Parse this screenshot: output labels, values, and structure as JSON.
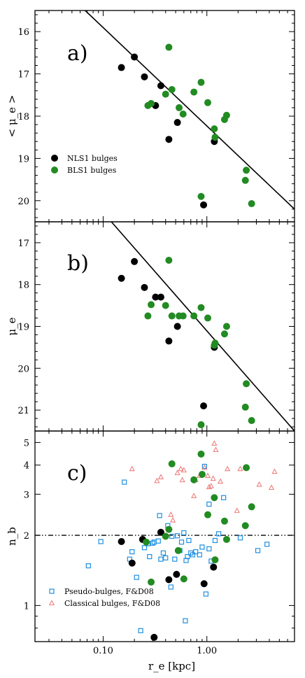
{
  "colors": {
    "nls1": "#000000",
    "bls1": "#228b22",
    "pseudo": "#1f8fe0",
    "classical": "#f07f7f",
    "frame": "#000000"
  },
  "xaxis": {
    "label": "r_e [kpc]",
    "tick_labels": [
      "0.10",
      "1.00"
    ],
    "scale": "log",
    "xlim": [
      0.022,
      7.0
    ]
  },
  "chart_data": [
    {
      "type": "scatter",
      "panel_label": "a)",
      "ylabel": "< μ_e >",
      "yscale": "linear-inverted",
      "ylim": [
        20.5,
        15.5
      ],
      "yticks": [
        16,
        17,
        18,
        19,
        20
      ],
      "legend": "center-left",
      "fit_line": {
        "x": [
          0.067,
          7.0
        ],
        "y": [
          15.5,
          20.2
        ]
      },
      "series": [
        {
          "name": "NLS1 bulges",
          "marker": "filled-circle",
          "color": "#000000",
          "points": [
            [
              0.15,
              16.85
            ],
            [
              0.2,
              16.6
            ],
            [
              0.25,
              17.07
            ],
            [
              0.32,
              17.75
            ],
            [
              0.36,
              17.28
            ],
            [
              0.43,
              18.55
            ],
            [
              0.52,
              18.15
            ],
            [
              1.18,
              18.6
            ],
            [
              0.93,
              20.1
            ]
          ]
        },
        {
          "name": "BLS1 bulges",
          "marker": "filled-circle",
          "color": "#228b22",
          "points": [
            [
              0.43,
              16.37
            ],
            [
              0.27,
              17.75
            ],
            [
              0.29,
              17.7
            ],
            [
              0.4,
              17.48
            ],
            [
              0.46,
              17.37
            ],
            [
              0.54,
              17.8
            ],
            [
              0.59,
              17.95
            ],
            [
              0.75,
              17.43
            ],
            [
              0.88,
              17.2
            ],
            [
              1.02,
              17.68
            ],
            [
              1.18,
              18.3
            ],
            [
              1.2,
              18.5
            ],
            [
              1.48,
              18.08
            ],
            [
              1.55,
              17.98
            ],
            [
              0.88,
              19.9
            ],
            [
              2.4,
              19.28
            ],
            [
              2.35,
              19.52
            ],
            [
              2.7,
              20.07
            ]
          ]
        }
      ]
    },
    {
      "type": "scatter",
      "panel_label": "b)",
      "ylabel": "μ_e",
      "yscale": "linear-inverted",
      "ylim": [
        21.5,
        16.5
      ],
      "yticks": [
        17,
        18,
        19,
        20,
        21
      ],
      "fit_line": {
        "x": [
          0.12,
          7.0
        ],
        "y": [
          16.5,
          21.5
        ]
      },
      "series": [
        {
          "name": "NLS1 bulges",
          "marker": "filled-circle",
          "color": "#000000",
          "points": [
            [
              0.15,
              17.85
            ],
            [
              0.2,
              17.45
            ],
            [
              0.25,
              18.07
            ],
            [
              0.32,
              18.3
            ],
            [
              0.36,
              18.3
            ],
            [
              0.43,
              19.35
            ],
            [
              0.52,
              19.0
            ],
            [
              1.18,
              19.5
            ],
            [
              0.93,
              20.9
            ]
          ]
        },
        {
          "name": "BLS1 bulges",
          "marker": "filled-circle",
          "color": "#228b22",
          "points": [
            [
              0.43,
              17.42
            ],
            [
              0.27,
              18.75
            ],
            [
              0.29,
              18.48
            ],
            [
              0.4,
              18.5
            ],
            [
              0.46,
              18.75
            ],
            [
              0.54,
              18.75
            ],
            [
              0.59,
              18.75
            ],
            [
              0.75,
              18.75
            ],
            [
              0.88,
              18.55
            ],
            [
              1.02,
              18.8
            ],
            [
              1.18,
              19.45
            ],
            [
              1.2,
              19.4
            ],
            [
              1.48,
              19.18
            ],
            [
              1.55,
              19.0
            ],
            [
              0.88,
              21.35
            ],
            [
              2.4,
              20.37
            ],
            [
              2.35,
              20.93
            ],
            [
              2.7,
              21.25
            ]
          ]
        }
      ]
    },
    {
      "type": "scatter",
      "panel_label": "c)",
      "ylabel": "n_b",
      "yscale": "log",
      "ylim": [
        0.7,
        5.6
      ],
      "ytick_labels": [
        "1",
        "2",
        "3",
        "4",
        "5"
      ],
      "reference_line": {
        "y": 2.0,
        "style": "dash-dot"
      },
      "legend": "lower-left",
      "series": [
        {
          "name": "Pseudo-bulges, F&D08",
          "marker": "open-square",
          "color": "#1f8fe0",
          "points": [
            [
              0.072,
              1.48
            ],
            [
              0.095,
              1.88
            ],
            [
              0.16,
              3.38
            ],
            [
              0.18,
              1.58
            ],
            [
              0.19,
              1.7
            ],
            [
              0.21,
              1.32
            ],
            [
              0.23,
              0.78
            ],
            [
              0.25,
              1.77
            ],
            [
              0.27,
              1.84
            ],
            [
              0.28,
              1.62
            ],
            [
              0.3,
              1.85
            ],
            [
              0.31,
              1.87
            ],
            [
              0.34,
              1.89
            ],
            [
              0.35,
              2.43
            ],
            [
              0.36,
              1.58
            ],
            [
              0.38,
              1.68
            ],
            [
              0.4,
              1.6
            ],
            [
              0.42,
              2.2
            ],
            [
              0.45,
              1.2
            ],
            [
              0.46,
              1.98
            ],
            [
              0.49,
              1.58
            ],
            [
              0.52,
              1.99
            ],
            [
              0.55,
              1.72
            ],
            [
              0.57,
              1.87
            ],
            [
              0.6,
              2.05
            ],
            [
              0.62,
              0.86
            ],
            [
              0.63,
              1.56
            ],
            [
              0.65,
              1.62
            ],
            [
              0.67,
              1.9
            ],
            [
              0.7,
              1.68
            ],
            [
              0.73,
              1.65
            ],
            [
              0.78,
              1.7
            ],
            [
              0.85,
              1.65
            ],
            [
              0.9,
              1.78
            ],
            [
              0.95,
              3.95
            ],
            [
              0.98,
              1.12
            ],
            [
              1.05,
              1.75
            ],
            [
              1.1,
              1.55
            ],
            [
              1.2,
              1.9
            ],
            [
              1.3,
              2.03
            ],
            [
              1.45,
              2.9
            ],
            [
              2.1,
              1.95
            ],
            [
              3.1,
              1.72
            ],
            [
              3.8,
              1.83
            ],
            [
              1.05,
              2.72
            ]
          ]
        },
        {
          "name": "Classical bulges, F&D08",
          "marker": "open-triangle",
          "color": "#f07f7f",
          "points": [
            [
              0.19,
              3.85
            ],
            [
              0.33,
              3.42
            ],
            [
              0.36,
              3.55
            ],
            [
              0.45,
              2.45
            ],
            [
              0.47,
              2.32
            ],
            [
              0.52,
              3.7
            ],
            [
              0.56,
              3.85
            ],
            [
              0.58,
              3.45
            ],
            [
              0.6,
              3.8
            ],
            [
              0.75,
              2.95
            ],
            [
              0.78,
              3.45
            ],
            [
              0.85,
              3.6
            ],
            [
              0.95,
              3.9
            ],
            [
              1.02,
              3.6
            ],
            [
              1.05,
              3.22
            ],
            [
              1.1,
              3.25
            ],
            [
              1.15,
              3.5
            ],
            [
              1.18,
              4.95
            ],
            [
              1.22,
              4.65
            ],
            [
              1.35,
              3.4
            ],
            [
              1.58,
              3.85
            ],
            [
              1.95,
              2.55
            ],
            [
              2.1,
              3.85
            ],
            [
              3.2,
              3.3
            ],
            [
              4.2,
              3.2
            ],
            [
              4.5,
              3.75
            ]
          ]
        },
        {
          "name": "NLS1 bulges",
          "marker": "filled-circle",
          "color": "#000000",
          "points": [
            [
              0.15,
              1.88
            ],
            [
              0.19,
              1.52
            ],
            [
              0.24,
              1.92
            ],
            [
              0.31,
              0.73
            ],
            [
              0.36,
              2.06
            ],
            [
              0.43,
              1.29
            ],
            [
              0.51,
              1.36
            ],
            [
              0.94,
              1.24
            ],
            [
              1.16,
              1.46
            ]
          ]
        },
        {
          "name": "BLS1 bulges",
          "marker": "filled-circle",
          "color": "#228b22",
          "points": [
            [
              0.26,
              1.87
            ],
            [
              0.29,
              1.26
            ],
            [
              0.4,
              1.98
            ],
            [
              0.43,
              2.12
            ],
            [
              0.46,
              4.05
            ],
            [
              0.53,
              1.72
            ],
            [
              0.6,
              1.3
            ],
            [
              0.75,
              3.46
            ],
            [
              0.88,
              4.46
            ],
            [
              0.9,
              3.65
            ],
            [
              1.02,
              2.45
            ],
            [
              1.18,
              2.9
            ],
            [
              1.2,
              1.57
            ],
            [
              1.48,
              2.3
            ],
            [
              1.55,
              1.92
            ],
            [
              2.4,
              3.9
            ],
            [
              2.35,
              2.2
            ],
            [
              2.7,
              2.65
            ]
          ]
        }
      ]
    }
  ]
}
